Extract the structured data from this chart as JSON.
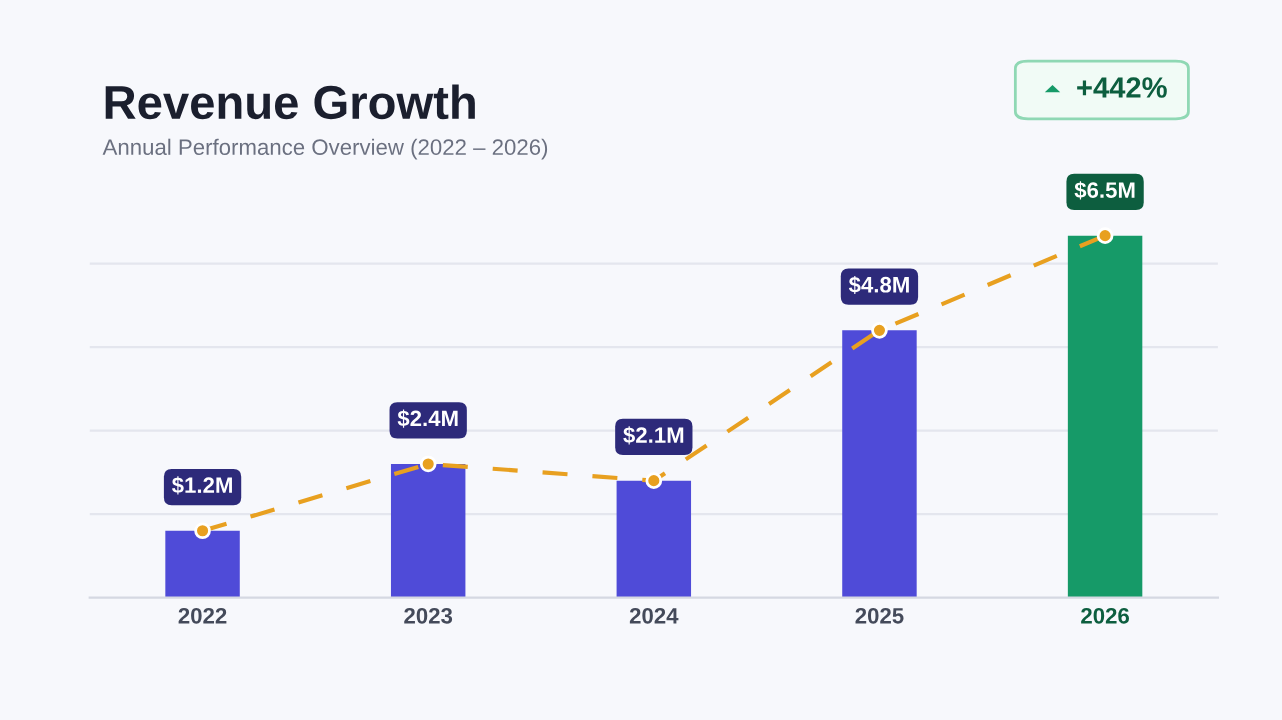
{
  "chart_data": {
    "type": "bar",
    "title": "Revenue Growth",
    "subtitle": "Annual Performance Overview (2022 – 2026)",
    "categories": [
      "2022",
      "2023",
      "2024",
      "2025",
      "2026"
    ],
    "series": [
      {
        "values": [
          1.2,
          2.4,
          2.1,
          4.8,
          6.5
        ],
        "colors": [
          "#4f4bd8",
          "#4f4bd8",
          "#4f4bd8",
          "#4f4bd8",
          "#169a68"
        ],
        "value_labels": [
          "$1.2M",
          "$2.4M",
          "$2.1M",
          "$4.8M",
          "$6.5M"
        ]
      },
      {
        "type": "line",
        "values": [
          1.2,
          2.4,
          2.1,
          4.8,
          6.5
        ],
        "color": "#e8a020",
        "line_style": "dashed",
        "marker": "circle"
      }
    ],
    "annotations": [
      "+442%"
    ],
    "ylim": [
      0,
      7.5
    ],
    "yticks": [
      {
        "value": 1.5,
        "label": null
      },
      {
        "value": 3,
        "label": null
      },
      {
        "value": 4.5,
        "label": null
      },
      {
        "value": 6,
        "label": null
      }
    ],
    "grid": "y",
    "tick_labels": "x",
    "legend": false
  }
}
